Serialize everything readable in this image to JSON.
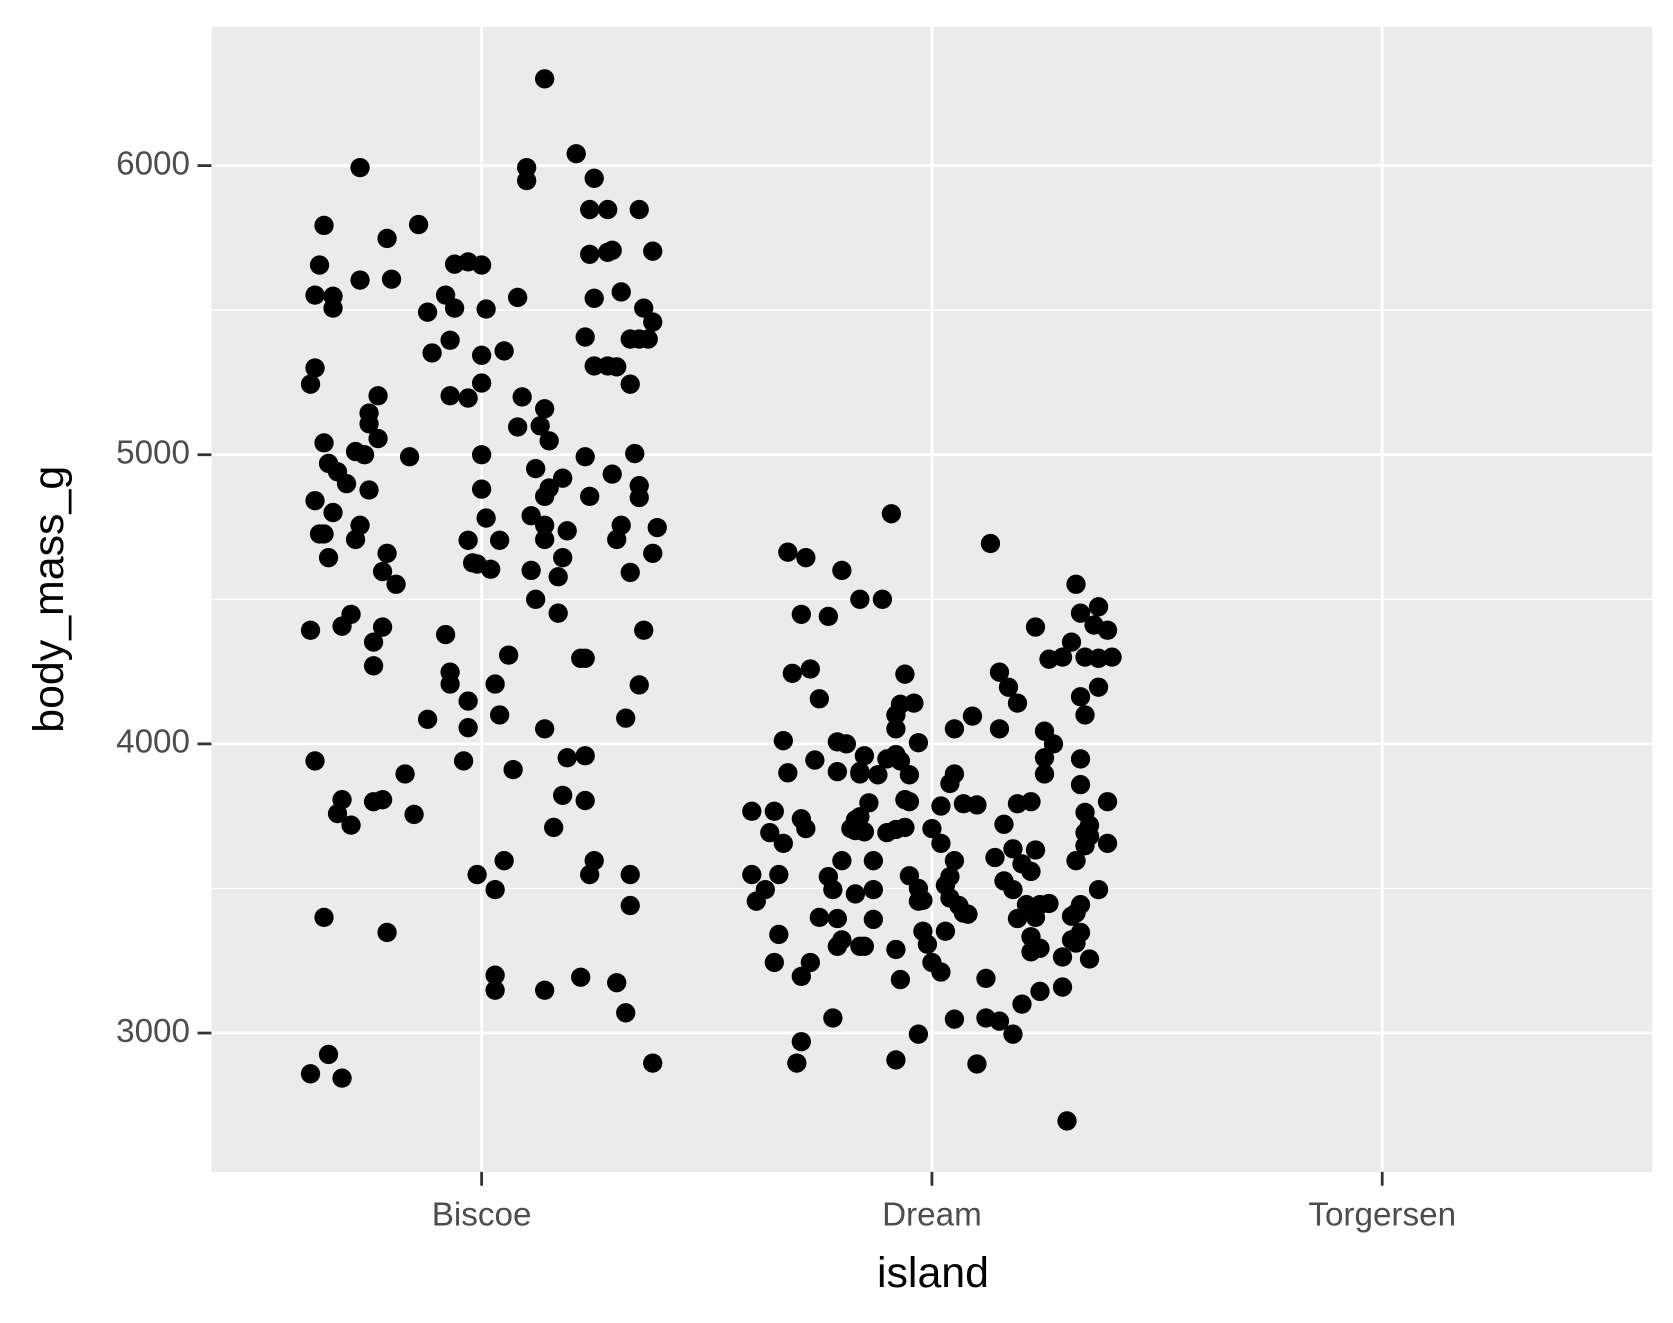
{
  "chart_data": {
    "type": "scatter",
    "x_label": "island",
    "y_label": "body_mass_g",
    "xlim": [
      0.4,
      3.6
    ],
    "xticks": [
      {
        "value": 1,
        "label": "Biscoe"
      },
      {
        "value": 2,
        "label": "Dream"
      },
      {
        "value": 3,
        "label": "Torgersen"
      }
    ],
    "ylim": [
      2520,
      6480
    ],
    "yticks": [
      3000,
      4000,
      5000,
      6000
    ],
    "y_minor_ticks": [
      3500,
      4500,
      5500
    ],
    "grid": true,
    "color": "#000000",
    "x": [
      1.14,
      0.73,
      1.1,
      1.1,
      1.21,
      1.25,
      0.65,
      0.86,
      0.79,
      0.64,
      0.97,
      1.0,
      1.24,
      1.28,
      1.35,
      1.24,
      1.28,
      1.29,
      1.38,
      0.94,
      0.73,
      0.8,
      0.63,
      0.67,
      0.67,
      0.88,
      0.92,
      0.94,
      1.01,
      1.08,
      1.25,
      1.31,
      1.36,
      1.38,
      1.33,
      1.35,
      1.37,
      1.23,
      0.89,
      0.93,
      1.0,
      1.05,
      1.25,
      1.28,
      1.3,
      1.33,
      0.63,
      0.62,
      1.0,
      0.93,
      0.97,
      0.77,
      0.75,
      0.75,
      0.77,
      1.09,
      1.14,
      1.13,
      1.08,
      1.15,
      0.65,
      0.72,
      0.74,
      0.84,
      1.0,
      1.23,
      1.34,
      0.66,
      0.68,
      0.7,
      0.75,
      1.12,
      1.18,
      1.15,
      1.14,
      1.29,
      1.35,
      1.35,
      1.24,
      1.0,
      0.63,
      0.67,
      1.11,
      1.01,
      0.64,
      0.65,
      0.73,
      0.72,
      1.14,
      1.19,
      1.14,
      1.31,
      1.39,
      1.3,
      0.97,
      1.04,
      0.66,
      0.79,
      1.18,
      1.38,
      0.78,
      0.81,
      0.98,
      0.99,
      1.02,
      1.11,
      1.17,
      1.33,
      1.12,
      1.17,
      0.71,
      0.69,
      0.78,
      0.76,
      0.62,
      0.92,
      1.36,
      1.06,
      1.22,
      1.23,
      0.76,
      0.93,
      0.93,
      1.03,
      1.35,
      0.97,
      1.04,
      0.88,
      1.32,
      0.97,
      1.14,
      0.63,
      0.96,
      1.19,
      1.23,
      0.83,
      1.07,
      0.69,
      0.76,
      0.78,
      1.23,
      1.18,
      0.68,
      0.71,
      0.85,
      1.16,
      1.25,
      1.05,
      0.99,
      1.24,
      1.33,
      1.03,
      1.33,
      0.65,
      0.79,
      1.03,
      1.03,
      1.14,
      1.22,
      1.3,
      1.32,
      0.66,
      0.62,
      0.69,
      1.38,
      1.91,
      1.72,
      1.8,
      1.89,
      1.71,
      2.32,
      2.37,
      2.33,
      2.36,
      2.23,
      2.31,
      2.29,
      2.34,
      2.37,
      2.4,
      2.15,
      1.94,
      2.33,
      1.75,
      1.93,
      1.96,
      1.92,
      2.34,
      2.09,
      2.05,
      1.92,
      2.15,
      2.25,
      1.79,
      1.81,
      1.74,
      1.85,
      1.9,
      1.93,
      1.92,
      2.25,
      2.33,
      1.68,
      1.79,
      1.84,
      1.95,
      2.05,
      2.25,
      2.33,
      1.86,
      1.94,
      2.02,
      2.07,
      2.1,
      2.19,
      1.6,
      1.71,
      1.72,
      1.84,
      1.83,
      1.92,
      1.94,
      2.0,
      2.02,
      2.16,
      2.34,
      2.35,
      2.35,
      1.64,
      1.67,
      2.18,
      2.39,
      1.8,
      1.87,
      2.05,
      2.14,
      2.2,
      1.6,
      1.66,
      1.77,
      2.04,
      2.16,
      1.78,
      1.87,
      1.97,
      2.03,
      2.18,
      1.98,
      2.04,
      2.06,
      2.24,
      2.26,
      2.33,
      2.07,
      2.08,
      1.75,
      1.79,
      1.87,
      2.19,
      2.23,
      2.31,
      2.32,
      1.98,
      2.03,
      2.33,
      1.79,
      1.84,
      1.85,
      1.99,
      2.24,
      2.31,
      2.32,
      2.29,
      2.35,
      1.73,
      2.0,
      2.02,
      1.93,
      2.24,
      2.2,
      1.78,
      1.97,
      2.18,
      1.71,
      1.92,
      2.1,
      2.3,
      2.13,
      1.68,
      1.84,
      1.77,
      2.39,
      2.26,
      1.73,
      1.69,
      2.17,
      2.37,
      2.19,
      1.67,
      1.97,
      2.27,
      1.84,
      1.88,
      2.04,
      1.95,
      2.22,
      2.39,
      1.65,
      1.83,
      1.82,
      1.85,
      1.9,
      2.34,
      2.34,
      2.23,
      2.32,
      2.22,
      1.95,
      1.63,
      2.37,
      1.83,
      1.61,
      1.97,
      2.21,
      1.66,
      2.22,
      2.22,
      1.8,
      1.92,
      1.65,
      1.71,
      2.12,
      2.29,
      2.05,
      2.12,
      2.15,
      1.7
    ],
    "y": [
      6300,
      5993,
      5993,
      5948,
      6041,
      5956,
      5793,
      5796,
      5748,
      5656,
      5667,
      5656,
      5848,
      5848,
      5848,
      5693,
      5700,
      5707,
      5704,
      5659,
      5604,
      5607,
      5552,
      5548,
      5507,
      5493,
      5552,
      5507,
      5504,
      5544,
      5541,
      5563,
      5507,
      5459,
      5400,
      5400,
      5400,
      5407,
      5352,
      5396,
      5344,
      5359,
      5307,
      5307,
      5304,
      5244,
      5300,
      5244,
      5248,
      5204,
      5196,
      5204,
      5144,
      5107,
      5056,
      5200,
      5159,
      5100,
      5096,
      5048,
      5041,
      5011,
      5000,
      4993,
      5000,
      4993,
      5004,
      4970,
      4941,
      4900,
      4878,
      4952,
      4919,
      4885,
      4856,
      4933,
      4893,
      4852,
      4856,
      4881,
      4841,
      4800,
      4789,
      4781,
      4726,
      4726,
      4756,
      4707,
      4756,
      4737,
      4707,
      4756,
      4748,
      4707,
      4704,
      4704,
      4644,
      4659,
      4644,
      4659,
      4596,
      4552,
      4626,
      4622,
      4604,
      4600,
      4578,
      4593,
      4500,
      4452,
      4448,
      4407,
      4404,
      4352,
      4393,
      4378,
      4393,
      4307,
      4296,
      4296,
      4270,
      4248,
      4207,
      4207,
      4204,
      4148,
      4100,
      4085,
      4089,
      4056,
      4052,
      3941,
      3941,
      3952,
      3959,
      3896,
      3911,
      3807,
      3800,
      3807,
      3804,
      3822,
      3759,
      3719,
      3756,
      3711,
      3596,
      3596,
      3548,
      3548,
      3548,
      3496,
      3441,
      3400,
      3348,
      3200,
      3148,
      3148,
      3193,
      3174,
      3070,
      2926,
      2859,
      2844,
      2896,
      4796,
      4644,
      4600,
      4500,
      4448,
      4552,
      4474,
      4452,
      4411,
      4404,
      4352,
      4300,
      4300,
      4296,
      4300,
      4248,
      4241,
      4163,
      4156,
      4137,
      4141,
      4100,
      4100,
      4096,
      4052,
      4052,
      4052,
      4044,
      4007,
      4000,
      3944,
      3959,
      3948,
      3941,
      3963,
      3952,
      3948,
      3900,
      3904,
      3904,
      3893,
      3896,
      3896,
      3859,
      3796,
      3807,
      3785,
      3793,
      3789,
      3793,
      3767,
      3741,
      3707,
      3748,
      3700,
      3704,
      3711,
      3707,
      3656,
      3722,
      3763,
      3719,
      3681,
      3693,
      3656,
      3637,
      3656,
      3596,
      3596,
      3596,
      3607,
      3585,
      3548,
      3548,
      3541,
      3541,
      3526,
      3496,
      3496,
      3500,
      3511,
      3496,
      3459,
      3467,
      3441,
      3444,
      3448,
      3444,
      3415,
      3411,
      3400,
      3396,
      3393,
      3396,
      3400,
      3404,
      3415,
      3352,
      3352,
      3348,
      3300,
      3300,
      3300,
      3307,
      3293,
      3322,
      3311,
      3263,
      3256,
      3244,
      3244,
      3211,
      3185,
      3144,
      3100,
      3052,
      2996,
      2996,
      2970,
      2907,
      2893,
      2696,
      4693,
      4663,
      4500,
      4441,
      4393,
      4293,
      4259,
      4244,
      4196,
      4196,
      4141,
      4011,
      4004,
      4000,
      3896,
      3893,
      3863,
      3800,
      3800,
      3800,
      3767,
      3737,
      3707,
      3696,
      3693,
      3693,
      3648,
      3633,
      3596,
      3559,
      3544,
      3496,
      3496,
      3481,
      3456,
      3456,
      3444,
      3341,
      3333,
      3281,
      3322,
      3289,
      3244,
      3196,
      3189,
      3159,
      3048,
      3052,
      3041,
      2896
    ]
  }
}
